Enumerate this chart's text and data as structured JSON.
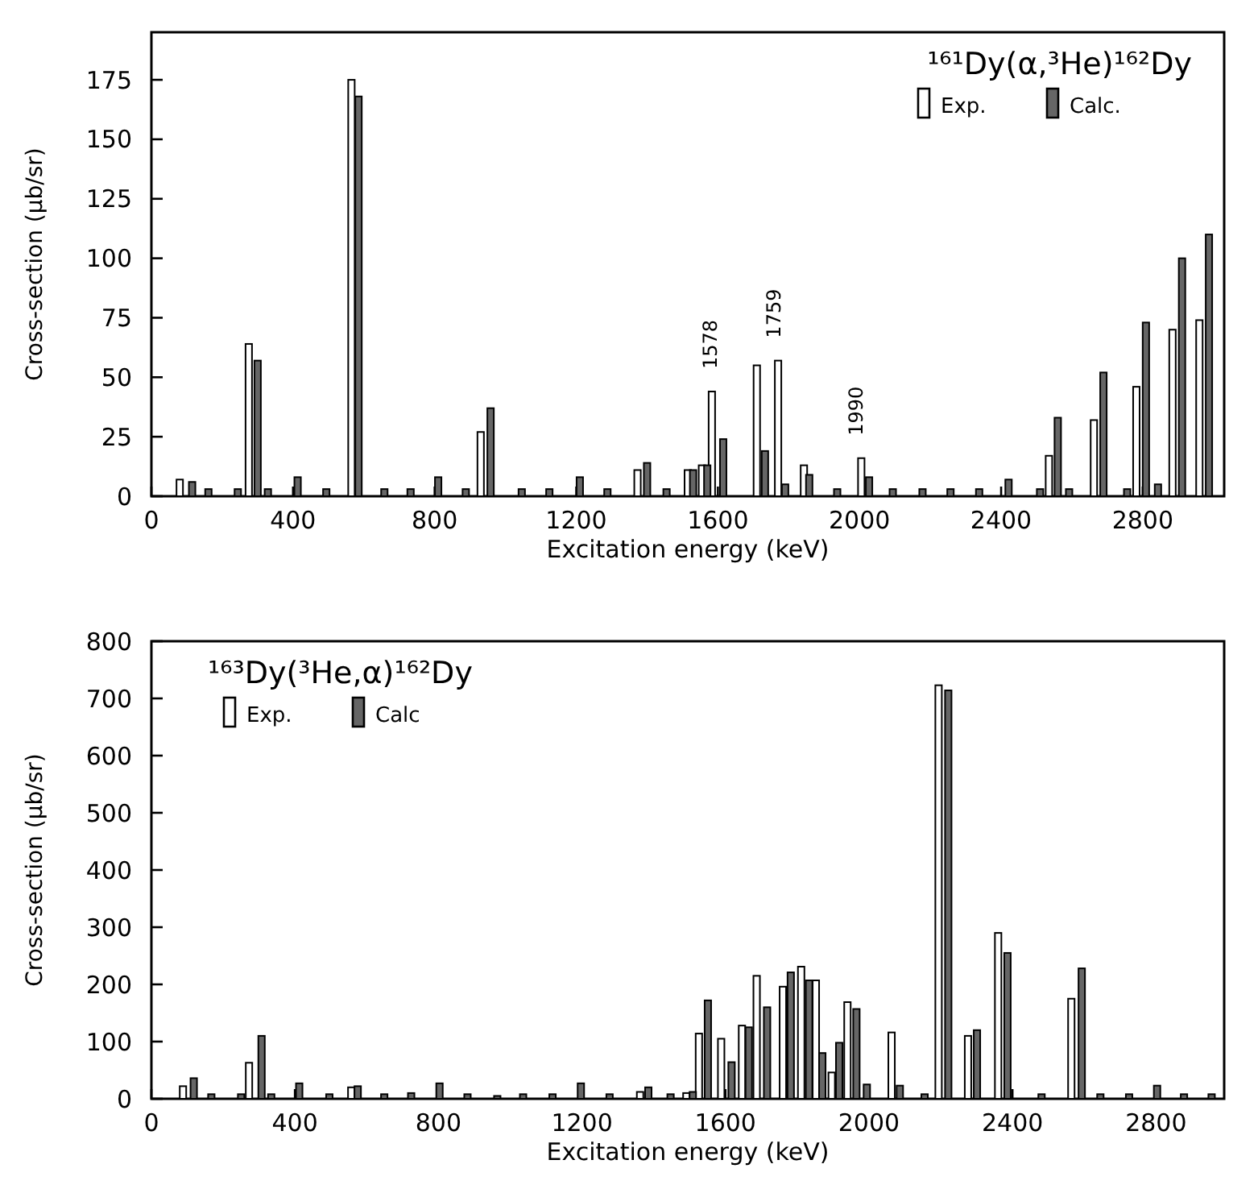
{
  "chart_data": [
    {
      "type": "bar",
      "title": "¹⁶¹Dy(α,³He)¹⁶²Dy",
      "xlabel": "Excitation energy (keV)",
      "ylabel": "Cross-section (μb/sr)",
      "xlim": [
        0,
        3030
      ],
      "xticks": [
        0,
        400,
        800,
        1200,
        1600,
        2000,
        2400,
        2800
      ],
      "ylim": [
        0,
        195
      ],
      "yticks": [
        0,
        25,
        50,
        75,
        100,
        125,
        150,
        175
      ],
      "legend": "top right",
      "x": [
        80,
        115,
        161,
        244,
        275,
        300,
        329,
        413,
        494,
        565,
        585,
        658,
        732,
        810,
        888,
        930,
        958,
        1046,
        1124,
        1210,
        1288,
        1373,
        1400,
        1455,
        1515,
        1530,
        1555,
        1570,
        1583,
        1615,
        1710,
        1733,
        1770,
        1790,
        1843,
        1858,
        1937,
        2005,
        2027,
        2094,
        2178,
        2257,
        2338,
        2421,
        2510,
        2535,
        2560,
        2592,
        2662,
        2689,
        2756,
        2782,
        2809,
        2843,
        2884,
        2911,
        2960,
        2987
      ],
      "series": [
        {
          "name": "Exp.",
          "color": "#ffffff",
          "values": [
            7,
            null,
            null,
            null,
            64,
            null,
            null,
            null,
            null,
            175,
            null,
            null,
            null,
            null,
            null,
            27,
            null,
            null,
            null,
            null,
            null,
            11,
            null,
            null,
            11,
            null,
            13,
            null,
            44,
            null,
            55,
            null,
            57,
            null,
            13,
            null,
            null,
            16,
            null,
            null,
            null,
            null,
            null,
            null,
            null,
            17,
            null,
            null,
            32,
            null,
            null,
            46,
            null,
            null,
            70,
            null,
            74,
            null
          ]
        },
        {
          "name": "Calc.",
          "color": "#666666",
          "values": [
            null,
            6,
            3,
            3,
            null,
            57,
            3,
            8,
            3,
            null,
            168,
            3,
            3,
            8,
            3,
            null,
            37,
            3,
            3,
            8,
            3,
            null,
            14,
            3,
            null,
            11,
            null,
            13,
            null,
            24,
            null,
            19,
            null,
            5,
            null,
            9,
            3,
            null,
            8,
            3,
            3,
            3,
            3,
            7,
            3,
            null,
            33,
            3,
            null,
            52,
            3,
            null,
            73,
            5,
            null,
            100,
            null,
            110
          ]
        }
      ],
      "annotations": [
        {
          "text": "1578",
          "x": 1578,
          "y": 44
        },
        {
          "text": "1759",
          "x": 1759,
          "y": 57
        },
        {
          "text": "1990",
          "x": 1990,
          "y": 16
        }
      ]
    },
    {
      "type": "bar",
      "title": "¹⁶³Dy(³He,α)¹⁶²Dy",
      "xlabel": "Excitation energy (keV)",
      "ylabel": "Cross-section (μb/sr)",
      "xlim": [
        0,
        2990
      ],
      "xticks": [
        0,
        400,
        800,
        1200,
        1600,
        2000,
        2400,
        2800
      ],
      "ylim": [
        0,
        800
      ],
      "yticks": [
        0,
        100,
        200,
        300,
        400,
        500,
        600,
        700,
        800
      ],
      "legend": "top left",
      "x": [
        88,
        118,
        167,
        250,
        272,
        307,
        334,
        412,
        496,
        557,
        575,
        649,
        724,
        803,
        881,
        964,
        1036,
        1118,
        1197,
        1277,
        1362,
        1385,
        1447,
        1491,
        1509,
        1526,
        1551,
        1588,
        1617,
        1646,
        1665,
        1687,
        1716,
        1760,
        1782,
        1811,
        1833,
        1852,
        1870,
        1896,
        1917,
        1940,
        1965,
        1994,
        2063,
        2086,
        2155,
        2194,
        2221,
        2276,
        2301,
        2360,
        2386,
        2481,
        2564,
        2593,
        2645,
        2725,
        2803,
        2878,
        2955
      ],
      "series": [
        {
          "name": "Exp.",
          "color": "#ffffff",
          "values": [
            22,
            null,
            null,
            null,
            63,
            null,
            null,
            null,
            null,
            20,
            null,
            null,
            null,
            null,
            null,
            null,
            null,
            null,
            null,
            null,
            12,
            null,
            null,
            10,
            null,
            114,
            null,
            105,
            null,
            128,
            null,
            215,
            null,
            196,
            null,
            231,
            null,
            207,
            null,
            46,
            null,
            169,
            null,
            null,
            116,
            null,
            null,
            723,
            null,
            110,
            null,
            290,
            null,
            null,
            175,
            null,
            null,
            null,
            null,
            null,
            null
          ]
        },
        {
          "name": "Calc",
          "color": "#666666",
          "values": [
            null,
            36,
            8,
            8,
            null,
            110,
            8,
            27,
            8,
            null,
            22,
            8,
            10,
            27,
            8,
            5,
            8,
            8,
            27,
            8,
            null,
            20,
            8,
            null,
            12,
            null,
            172,
            null,
            64,
            null,
            125,
            null,
            160,
            null,
            221,
            null,
            207,
            null,
            80,
            null,
            98,
            null,
            157,
            25,
            null,
            23,
            8,
            null,
            714,
            null,
            120,
            null,
            255,
            8,
            null,
            228,
            8,
            8,
            23,
            8,
            8
          ]
        }
      ]
    }
  ]
}
